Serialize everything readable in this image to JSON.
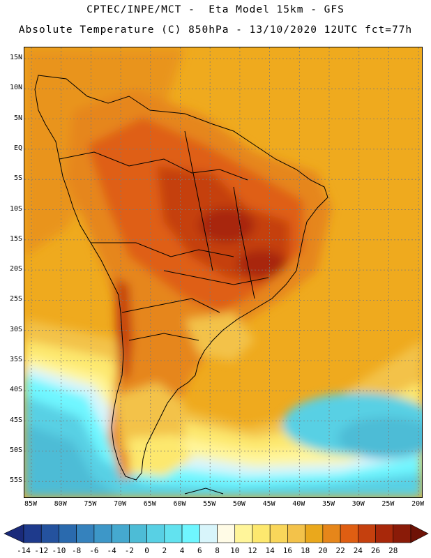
{
  "header": {
    "line1": "CPTEC/INPE/MCT -  Eta Model 15km - GFS",
    "line2": "Absolute Temperature (C) 850hPa - 13/10/2020 12UTC fct=77h"
  },
  "map": {
    "latitude_labels": [
      "15N",
      "10N",
      "5N",
      "EQ",
      "5S",
      "10S",
      "15S",
      "20S",
      "25S",
      "30S",
      "35S",
      "40S",
      "45S",
      "50S",
      "55S"
    ],
    "longitude_labels": [
      "85W",
      "80W",
      "75W",
      "70W",
      "65W",
      "60W",
      "55W",
      "50W",
      "45W",
      "40W",
      "35W",
      "30W",
      "25W",
      "20W"
    ],
    "grid": true
  },
  "colorbar": {
    "labels": [
      "-14",
      "-12",
      "-10",
      "-8",
      "-6",
      "-4",
      "-2",
      "0",
      "2",
      "4",
      "6",
      "8",
      "10",
      "12",
      "14",
      "16",
      "18",
      "20",
      "22",
      "24",
      "26",
      "28"
    ],
    "colors": [
      "#1e3a8c",
      "#24529e",
      "#2a6aae",
      "#3582bd",
      "#3d97c8",
      "#45a9cf",
      "#4dbcd6",
      "#58d0e4",
      "#62e2ef",
      "#6ff6ff",
      "#d8f5fb",
      "#fffbe6",
      "#fff59a",
      "#fde86e",
      "#f9d65a",
      "#f3c24a",
      "#eaa81c",
      "#e6861a",
      "#df5e12",
      "#c5400e",
      "#a8280a",
      "#8a1b08"
    ],
    "below_color": "#1a2a7a",
    "above_color": "#6e1206"
  }
}
